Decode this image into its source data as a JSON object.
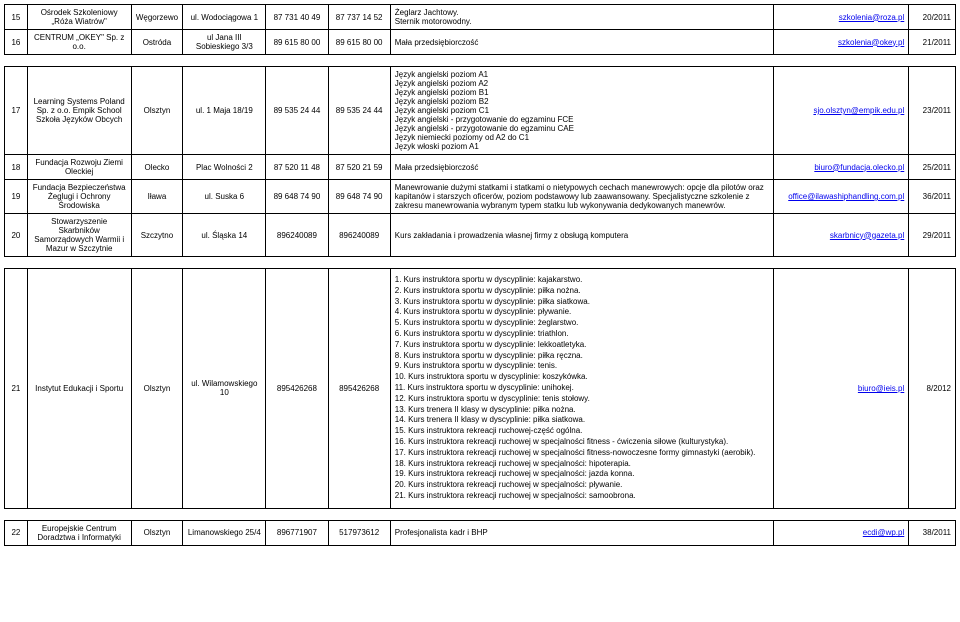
{
  "rows": [
    {
      "num": "15",
      "name": "Ośrodek Szkoleniowy „Róża Wiatrów\"",
      "city": "Węgorzewo",
      "addr": "ul. Wodociągowa 1",
      "ph1": "87 731 40 49",
      "ph2": "87 737 14 52",
      "desc": "Żeglarz Jachtowy.\nSternik motorowodny.",
      "email": "szkolenia@roza.pl",
      "year": "20/2011"
    },
    {
      "num": "16",
      "name": "CENTRUM „OKEY\" Sp. z o.o.",
      "city": "Ostróda",
      "addr": "ul Jana III Sobieskiego 3/3",
      "ph1": "89 615 80 00",
      "ph2": "89 615 80 00",
      "desc": "Mała przedsiębiorczość",
      "email": "szkolenia@okey.pl",
      "year": "21/2011"
    },
    {
      "num": "17",
      "name": "Learning Systems Poland Sp. z o.o. Empik School Szkoła Języków Obcych",
      "city": "Olsztyn",
      "addr": "ul. 1 Maja 18/19",
      "ph1": "89 535 24 44",
      "ph2": "89 535 24 44",
      "desc": "Język angielski poziom A1\nJęzyk angielski poziom A2\nJęzyk angielski poziom B1\nJęzyk angielski poziom B2\nJęzyk angielski poziom C1\nJęzyk angielski - przygotowanie do egzaminu FCE\nJęzyk angielski - przygotowanie do egzaminu CAE\nJęzyk niemiecki poziomy od A2 do C1\nJęzyk włoski poziom A1",
      "email": "sjo.olsztyn@empik.edu.pl",
      "year": "23/2011"
    },
    {
      "num": "18",
      "name": "Fundacja Rozwoju Ziemi Oleckiej",
      "city": "Olecko",
      "addr": "Plac Wolności 2",
      "ph1": "87 520 11 48",
      "ph2": "87 520 21 59",
      "desc": "Mała przedsiębiorczość",
      "email": "biuro@fundacja.olecko.pl",
      "year": "25/2011"
    },
    {
      "num": "19",
      "name": "Fundacja Bezpieczeństwa Żeglugi i Ochrony Środowiska",
      "city": "Iława",
      "addr": "ul. Suska 6",
      "ph1": "89 648 74 90",
      "ph2": "89 648 74 90",
      "desc": "Manewrowanie dużymi statkami i statkami o nietypowych cechach manewrowych: opcje dla pilotów oraz kapitanów i starszych oficerów, poziom podstawowy lub zaawansowany. Specjalistyczne szkolenie z zakresu manewrowania wybranym typem statku lub wykonywania dedykowanych manewrów.",
      "email": "office@ilawashiphandling.com.pl",
      "year": "36/2011"
    },
    {
      "num": "20",
      "name": "Stowarzyszenie Skarbników Samorządowych Warmii i Mazur w Szczytnie",
      "city": "Szczytno",
      "addr": "ul. Śląska 14",
      "ph1": "896240089",
      "ph2": "896240089",
      "desc": "Kurs zakładania i prowadzenia własnej firmy z obsługą komputera",
      "email": "skarbnicy@gazeta.pl",
      "year": "29/2011"
    },
    {
      "num": "21",
      "name": "Instytut Edukacji i Sportu",
      "city": "Olsztyn",
      "addr": "ul. Wilamowskiego 10",
      "ph1": "895426268",
      "ph2": "895426268",
      "desc": "1. Kurs instruktora sportu w dyscyplinie: kajakarstwo.\n2. Kurs instruktora sportu w dyscyplinie: piłka nożna.\n3. Kurs instruktora sportu w dyscyplinie: piłka siatkowa.\n4. Kurs instruktora sportu w dyscyplinie: pływanie.\n5. Kurs instruktora sportu w dyscyplinie: żeglarstwo.\n6. Kurs instruktora sportu w dyscyplinie: triathlon.\n7. Kurs instruktora sportu w dyscyplinie: lekkoatletyka.\n8. Kurs instruktora sportu w dyscyplinie: piłka ręczna.\n9. Kurs instruktora sportu w dyscyplinie: tenis.\n10. Kurs instruktora sportu w dyscyplinie: koszykówka.\n11. Kurs instruktora sportu w dyscyplinie: unihokej.\n12. Kurs instruktora sportu w dyscyplinie: tenis stołowy.\n13. Kurs trenera II klasy w dyscyplinie: piłka nożna.\n14. Kurs trenera II klasy w dyscyplinie: piłka siatkowa.\n15. Kurs instruktora rekreacji ruchowej-część ogólna.\n16. Kurs instruktora rekreacji ruchowej w specjalności fitness - ćwiczenia siłowe (kulturystyka).\n17. Kurs instruktora rekreacji ruchowej w specjalności fitness-nowoczesne formy gimnastyki (aerobik).\n18. Kurs instruktora rekreacji ruchowej w specjalności: hipoterapia.\n19. Kurs instruktora rekreacji ruchowej w specjalności: jazda konna.\n20. Kurs instruktora rekreacji ruchowej w specjalności: pływanie.\n21. Kurs instruktora rekreacji ruchowej w specjalności: samoobrona.",
      "email": "biuro@ieis.pl",
      "year": "8/2012"
    },
    {
      "num": "22",
      "name": "Europejskie Centrum Doradztwa i Informatyki",
      "city": "Olsztyn",
      "addr": "Limanowskiego 25/4",
      "ph1": "896771907",
      "ph2": "517973612",
      "desc": "Profesjonalista kadr i BHP",
      "email": "ecdi@wp.pl",
      "year": "38/2011"
    }
  ],
  "styles": {
    "font_family": "Arial",
    "font_size_pt": 6,
    "border_color": "#000000",
    "background_color": "#ffffff",
    "link_color": "#0000ee",
    "col_widths_pct": {
      "num": 2.3,
      "name": 10.5,
      "city": 5.2,
      "addr": 8.4,
      "ph1": 6.3,
      "ph2": 6.3,
      "desc": 38.8,
      "email": 13.6,
      "year": 4.7
    }
  }
}
